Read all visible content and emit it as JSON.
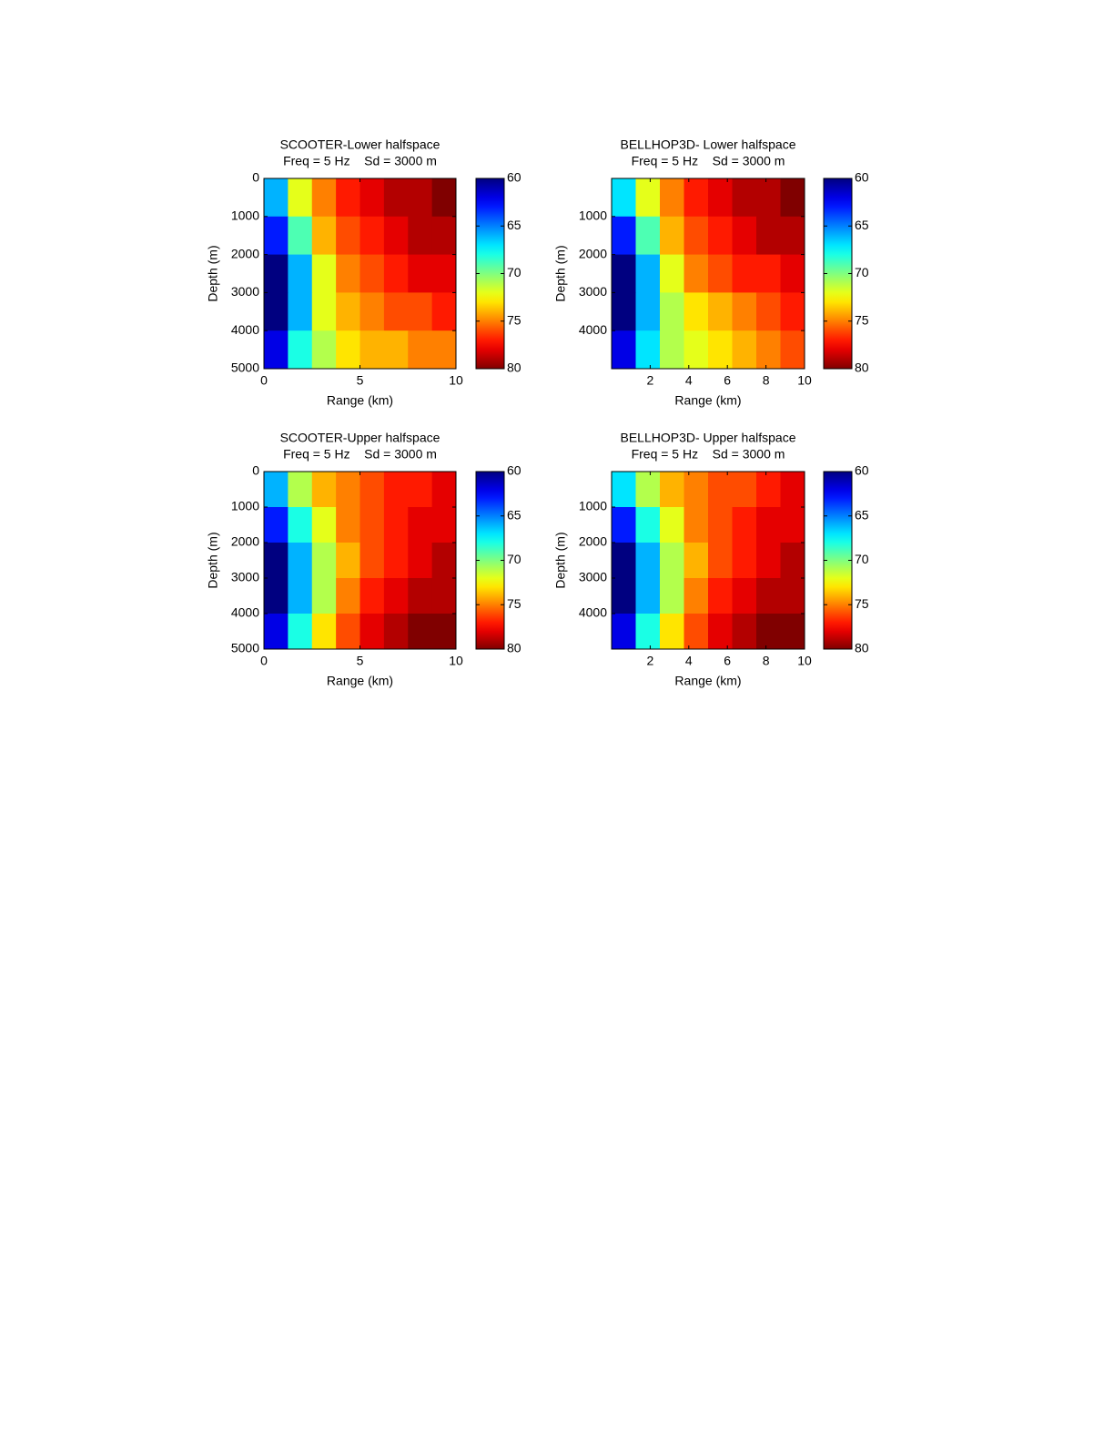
{
  "chart_data": [
    {
      "type": "heatmap",
      "title": "SCOOTER-Lower halfspace",
      "subtitle": "Freq = 5 Hz    Sd = 3000 m",
      "xlabel": "Range (km)",
      "ylabel": "Depth (m)",
      "xlim": [
        0,
        10
      ],
      "xticks": [
        0,
        5,
        10
      ],
      "ylim": [
        0,
        5000
      ],
      "yticks": [
        0,
        1000,
        2000,
        3000,
        4000,
        5000
      ],
      "ydir": "reverse",
      "x": [
        0.625,
        1.875,
        3.125,
        4.375,
        5.625,
        6.875,
        8.125,
        9.375
      ],
      "y": [
        500,
        1500,
        2500,
        3500,
        4500
      ],
      "z": [
        [
          66,
          72,
          75,
          77,
          78,
          79,
          79,
          80
        ],
        [
          63,
          69,
          74,
          76,
          77,
          78,
          79,
          79
        ],
        [
          60,
          66,
          72,
          75,
          76,
          77,
          78,
          78
        ],
        [
          60,
          66,
          72,
          74,
          75,
          76,
          76,
          77
        ],
        [
          62,
          68,
          71,
          73,
          74,
          74,
          75,
          75
        ]
      ],
      "colormap": "jet",
      "clim": [
        60,
        80
      ],
      "cticks": [
        60,
        65,
        70,
        75,
        80
      ],
      "cdir": "reverse"
    },
    {
      "type": "heatmap",
      "title": "BELLHOP3D- Lower halfspace",
      "subtitle": "Freq = 5 Hz    Sd = 3000 m",
      "xlabel": "Range (km)",
      "ylabel": "Depth (m)",
      "xlim": [
        0,
        10
      ],
      "xticks": [
        2,
        4,
        6,
        8,
        10
      ],
      "ylim": [
        0,
        5000
      ],
      "yticks": [
        1000,
        2000,
        3000,
        4000
      ],
      "ydir": "reverse",
      "x": [
        0.625,
        1.875,
        3.125,
        4.375,
        5.625,
        6.875,
        8.125,
        9.375
      ],
      "y": [
        500,
        1500,
        2500,
        3500,
        4500
      ],
      "z": [
        [
          67,
          72,
          75,
          77,
          78,
          79,
          79,
          80
        ],
        [
          63,
          69,
          74,
          76,
          77,
          78,
          79,
          79
        ],
        [
          60,
          66,
          72,
          75,
          76,
          77,
          77,
          78
        ],
        [
          60,
          66,
          71,
          73,
          74,
          75,
          76,
          77
        ],
        [
          62,
          67,
          71,
          72,
          73,
          74,
          75,
          76
        ]
      ],
      "colormap": "jet",
      "clim": [
        60,
        80
      ],
      "cticks": [
        60,
        65,
        70,
        75,
        80
      ],
      "cdir": "reverse"
    },
    {
      "type": "heatmap",
      "title": "SCOOTER-Upper halfspace",
      "subtitle": "Freq = 5 Hz    Sd = 3000 m",
      "xlabel": "Range (km)",
      "ylabel": "Depth (m)",
      "xlim": [
        0,
        10
      ],
      "xticks": [
        0,
        5,
        10
      ],
      "ylim": [
        0,
        5000
      ],
      "yticks": [
        0,
        1000,
        2000,
        3000,
        4000,
        5000
      ],
      "ydir": "reverse",
      "x": [
        0.625,
        1.875,
        3.125,
        4.375,
        5.625,
        6.875,
        8.125,
        9.375
      ],
      "y": [
        500,
        1500,
        2500,
        3500,
        4500
      ],
      "z": [
        [
          66,
          71,
          74,
          75,
          76,
          77,
          77,
          78
        ],
        [
          63,
          68,
          72,
          75,
          76,
          77,
          78,
          78
        ],
        [
          60,
          66,
          71,
          74,
          76,
          77,
          78,
          79
        ],
        [
          60,
          66,
          71,
          75,
          77,
          78,
          79,
          79
        ],
        [
          62,
          68,
          73,
          76,
          78,
          79,
          80,
          80
        ]
      ],
      "colormap": "jet",
      "clim": [
        60,
        80
      ],
      "cticks": [
        60,
        65,
        70,
        75,
        80
      ],
      "cdir": "reverse"
    },
    {
      "type": "heatmap",
      "title": "BELLHOP3D- Upper halfspace",
      "subtitle": "Freq = 5 Hz    Sd = 3000 m",
      "xlabel": "Range (km)",
      "ylabel": "Depth (m)",
      "xlim": [
        0,
        10
      ],
      "xticks": [
        2,
        4,
        6,
        8,
        10
      ],
      "ylim": [
        0,
        5000
      ],
      "yticks": [
        1000,
        2000,
        3000,
        4000
      ],
      "ydir": "reverse",
      "x": [
        0.625,
        1.875,
        3.125,
        4.375,
        5.625,
        6.875,
        8.125,
        9.375
      ],
      "y": [
        500,
        1500,
        2500,
        3500,
        4500
      ],
      "z": [
        [
          67,
          71,
          74,
          75,
          76,
          76,
          77,
          78
        ],
        [
          63,
          68,
          72,
          75,
          76,
          77,
          78,
          78
        ],
        [
          60,
          66,
          71,
          74,
          76,
          77,
          78,
          79
        ],
        [
          60,
          66,
          71,
          75,
          77,
          78,
          79,
          79
        ],
        [
          62,
          68,
          73,
          76,
          78,
          79,
          80,
          80
        ]
      ],
      "colormap": "jet",
      "clim": [
        60,
        80
      ],
      "cticks": [
        60,
        65,
        70,
        75,
        80
      ],
      "cdir": "reverse"
    }
  ]
}
